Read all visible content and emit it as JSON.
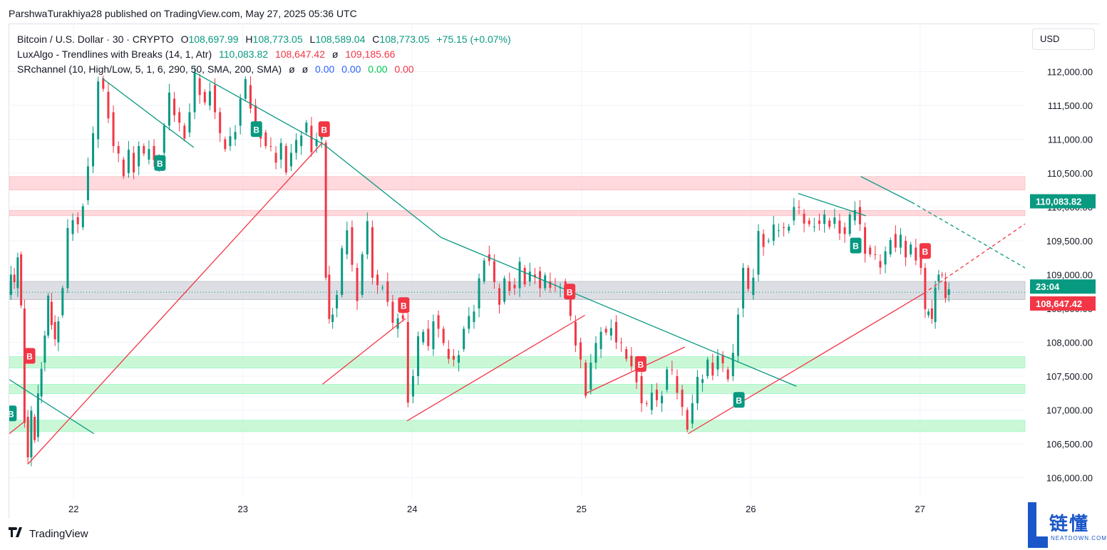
{
  "publisher_line": "ParshwaTurakhiya28 published on TradingView.com, May 27, 2025 05:36 UTC",
  "legend": {
    "symbol": "Bitcoin / U.S. Dollar · 30 · CRYPTO",
    "open_label": "O",
    "open": "108,697.99",
    "high_label": "H",
    "high": "108,773.05",
    "low_label": "L",
    "low": "108,589.04",
    "close_label": "C",
    "close": "108,773.05",
    "change": "+75.15 (+0.07%)",
    "indicator1_name": "LuxAlgo - Trendlines with Breaks (14, 1, Atr)",
    "indicator1_v1": "110,083.82",
    "indicator1_v2": "108,647.42",
    "indicator1_sym": "ø",
    "indicator1_v3": "109,185.66",
    "indicator2_name": "SRchannel (10, High/Low, 5, 1, 6, 290, 50, SMA, 200, SMA)",
    "indicator2_sym1": "ø",
    "indicator2_sym2": "ø",
    "indicator2_v1": "0.00",
    "indicator2_v2": "0.00",
    "indicator2_v3": "0.00",
    "indicator2_v4": "0.00"
  },
  "currency": "USD",
  "brand": "TradingView",
  "watermark": {
    "text": "链懂",
    "sub": "NEATDOWN.COM"
  },
  "colors": {
    "up": "#089981",
    "down": "#f23645",
    "trend_down": "#089981",
    "trend_up": "#f23645",
    "resistance_zone": "#ffcdd2",
    "support_zone": "#b9f6ca",
    "neutral_zone": "#d1d4dc"
  },
  "chart_data": {
    "type": "candlestick",
    "y_axis_labels": [
      "112,000.00",
      "111,500.00",
      "111,000.00",
      "110,500.00",
      "110,000.00",
      "109,500.00",
      "109,000.00",
      "108,500.00",
      "108,000.00",
      "107,500.00",
      "107,000.00",
      "106,500.00",
      "106,000.00"
    ],
    "y_ticks": [
      112000,
      111500,
      111000,
      110500,
      110000,
      109500,
      109000,
      108500,
      108000,
      107500,
      107000,
      106500,
      106000
    ],
    "ylim": [
      105700,
      112700
    ],
    "x_axis_labels": [
      "22",
      "23",
      "24",
      "25",
      "26",
      "27"
    ],
    "x_ticks_day": [
      22,
      23,
      24,
      25,
      26,
      27
    ],
    "xlim_day": [
      21.62,
      27.62
    ],
    "price_tags": [
      {
        "label": "110,083.82",
        "value": 110083.82,
        "color": "#089981"
      },
      {
        "label": "23:04",
        "value": 108740,
        "color": "#089981"
      },
      {
        "label": "108,647.42",
        "value": 108647.42,
        "color": "#f23645"
      }
    ],
    "last_price": 108740,
    "zones": [
      {
        "low": 110250,
        "high": 110450,
        "kind": "resistance"
      },
      {
        "low": 109870,
        "high": 109950,
        "kind": "resistance"
      },
      {
        "low": 108630,
        "high": 108900,
        "kind": "neutral"
      },
      {
        "low": 107620,
        "high": 107790,
        "kind": "support"
      },
      {
        "low": 107240,
        "high": 107380,
        "kind": "support"
      },
      {
        "low": 106680,
        "high": 106850,
        "kind": "support"
      }
    ],
    "trendlines": [
      {
        "kind": "down",
        "x": [
          22.17,
          22.71
        ],
        "y": [
          111900,
          110880
        ]
      },
      {
        "kind": "down",
        "x": [
          22.72,
          23.48
        ],
        "y": [
          111980,
          110920
        ]
      },
      {
        "kind": "down",
        "x": [
          23.48,
          24.17
        ],
        "y": [
          110920,
          109550
        ]
      },
      {
        "kind": "down",
        "x": [
          24.17,
          26.27
        ],
        "y": [
          109550,
          107350
        ]
      },
      {
        "kind": "down",
        "x": [
          26.28,
          26.68
        ],
        "y": [
          110200,
          109870
        ]
      },
      {
        "kind": "down",
        "x": [
          26.65,
          26.95
        ],
        "y": [
          110450,
          110070
        ]
      },
      {
        "kind": "down",
        "x": [
          26.95,
          27.62
        ],
        "y": [
          110070,
          109100
        ],
        "dashed": true
      },
      {
        "kind": "down",
        "x": [
          21.62,
          22.12
        ],
        "y": [
          107450,
          106650
        ]
      },
      {
        "kind": "up",
        "x": [
          21.73,
          23.47
        ],
        "y": [
          106200,
          110950
        ]
      },
      {
        "kind": "up",
        "x": [
          23.47,
          23.96
        ],
        "y": [
          107380,
          108350
        ]
      },
      {
        "kind": "up",
        "x": [
          23.97,
          25.02
        ],
        "y": [
          106840,
          108400
        ]
      },
      {
        "kind": "up",
        "x": [
          25.03,
          25.61
        ],
        "y": [
          107250,
          107930
        ]
      },
      {
        "kind": "up",
        "x": [
          25.63,
          27.02
        ],
        "y": [
          106650,
          108720
        ]
      },
      {
        "kind": "up",
        "x": [
          27.02,
          27.62
        ],
        "y": [
          108720,
          109750
        ],
        "dashed": true
      },
      {
        "kind": "up",
        "x": [
          21.62,
          21.71
        ],
        "y": [
          106650,
          106830
        ]
      }
    ],
    "break_labels": [
      {
        "label": "B",
        "x": 21.63,
        "y": 106950,
        "kind": "up"
      },
      {
        "label": "B",
        "x": 21.74,
        "y": 107800,
        "kind": "down"
      },
      {
        "label": "B",
        "x": 22.51,
        "y": 110650,
        "kind": "up"
      },
      {
        "label": "B",
        "x": 23.08,
        "y": 111150,
        "kind": "up"
      },
      {
        "label": "B",
        "x": 23.48,
        "y": 111150,
        "kind": "down"
      },
      {
        "label": "B",
        "x": 23.95,
        "y": 108550,
        "kind": "down"
      },
      {
        "label": "B",
        "x": 24.93,
        "y": 108750,
        "kind": "down"
      },
      {
        "label": "B",
        "x": 25.35,
        "y": 107680,
        "kind": "down"
      },
      {
        "label": "B",
        "x": 25.93,
        "y": 107150,
        "kind": "up"
      },
      {
        "label": "B",
        "x": 26.62,
        "y": 109430,
        "kind": "up"
      },
      {
        "label": "B",
        "x": 27.03,
        "y": 109350,
        "kind": "down"
      }
    ],
    "ohlc_path": [
      [
        21.62,
        108700
      ],
      [
        21.64,
        109000
      ],
      [
        21.66,
        108800
      ],
      [
        21.68,
        109300
      ],
      [
        21.7,
        108500
      ],
      [
        21.72,
        106900
      ],
      [
        21.74,
        106300
      ],
      [
        21.76,
        106900
      ],
      [
        21.78,
        106600
      ],
      [
        21.8,
        107200
      ],
      [
        21.82,
        107700
      ],
      [
        21.84,
        108100
      ],
      [
        21.86,
        108600
      ],
      [
        21.88,
        108300
      ],
      [
        21.9,
        108000
      ],
      [
        21.92,
        108400
      ],
      [
        21.95,
        108800
      ],
      [
        21.98,
        109600
      ],
      [
        22.01,
        109850
      ],
      [
        22.04,
        109700
      ],
      [
        22.07,
        110100
      ],
      [
        22.1,
        110600
      ],
      [
        22.13,
        111000
      ],
      [
        22.16,
        111900
      ],
      [
        22.19,
        111700
      ],
      [
        22.22,
        111400
      ],
      [
        22.25,
        110900
      ],
      [
        22.28,
        110700
      ],
      [
        22.31,
        110500
      ],
      [
        22.34,
        110800
      ],
      [
        22.37,
        110600
      ],
      [
        22.4,
        110900
      ],
      [
        22.43,
        110700
      ],
      [
        22.46,
        110900
      ],
      [
        22.49,
        110650
      ],
      [
        22.52,
        110800
      ],
      [
        22.55,
        111200
      ],
      [
        22.58,
        111600
      ],
      [
        22.61,
        111400
      ],
      [
        22.64,
        111200
      ],
      [
        22.67,
        111100
      ],
      [
        22.7,
        111400
      ],
      [
        22.73,
        111900
      ],
      [
        22.76,
        111700
      ],
      [
        22.79,
        111500
      ],
      [
        22.82,
        111800
      ],
      [
        22.85,
        111400
      ],
      [
        22.88,
        111000
      ],
      [
        22.91,
        110900
      ],
      [
        22.94,
        111000
      ],
      [
        22.97,
        111200
      ],
      [
        23.0,
        111600
      ],
      [
        23.03,
        111800
      ],
      [
        23.06,
        111500
      ],
      [
        23.09,
        111200
      ],
      [
        23.12,
        111100
      ],
      [
        23.15,
        110900
      ],
      [
        23.18,
        110800
      ],
      [
        23.21,
        110700
      ],
      [
        23.24,
        110900
      ],
      [
        23.27,
        110600
      ],
      [
        23.3,
        110800
      ],
      [
        23.33,
        110900
      ],
      [
        23.36,
        111100
      ],
      [
        23.39,
        111200
      ],
      [
        23.42,
        110900
      ],
      [
        23.45,
        111000
      ],
      [
        23.48,
        110950
      ],
      [
        23.5,
        109000
      ],
      [
        23.52,
        108300
      ],
      [
        23.54,
        108500
      ],
      [
        23.57,
        108700
      ],
      [
        23.6,
        109300
      ],
      [
        23.63,
        109700
      ],
      [
        23.66,
        109100
      ],
      [
        23.69,
        108700
      ],
      [
        23.72,
        109300
      ],
      [
        23.75,
        109700
      ],
      [
        23.78,
        109000
      ],
      [
        23.81,
        108800
      ],
      [
        23.84,
        108900
      ],
      [
        23.87,
        108600
      ],
      [
        23.9,
        108200
      ],
      [
        23.93,
        108400
      ],
      [
        23.96,
        108300
      ],
      [
        23.99,
        107200
      ],
      [
        24.02,
        107500
      ],
      [
        24.05,
        108000
      ],
      [
        24.08,
        108200
      ],
      [
        24.11,
        107900
      ],
      [
        24.14,
        108400
      ],
      [
        24.17,
        108200
      ],
      [
        24.2,
        107900
      ],
      [
        24.23,
        107800
      ],
      [
        24.26,
        107700
      ],
      [
        24.29,
        107900
      ],
      [
        24.32,
        108200
      ],
      [
        24.35,
        108300
      ],
      [
        24.38,
        108500
      ],
      [
        24.41,
        108900
      ],
      [
        24.44,
        109300
      ],
      [
        24.47,
        109200
      ],
      [
        24.5,
        108800
      ],
      [
        24.53,
        108600
      ],
      [
        24.56,
        108900
      ],
      [
        24.59,
        108850
      ],
      [
        24.62,
        108800
      ],
      [
        24.65,
        109100
      ],
      [
        24.68,
        108900
      ],
      [
        24.71,
        109000
      ],
      [
        24.74,
        109050
      ],
      [
        24.77,
        108800
      ],
      [
        24.8,
        108900
      ],
      [
        24.83,
        108850
      ],
      [
        24.86,
        108800
      ],
      [
        24.89,
        108900
      ],
      [
        24.92,
        108700
      ],
      [
        24.95,
        108300
      ],
      [
        24.98,
        108000
      ],
      [
        25.01,
        107700
      ],
      [
        25.04,
        107300
      ],
      [
        25.07,
        107700
      ],
      [
        25.1,
        107900
      ],
      [
        25.13,
        108200
      ],
      [
        25.16,
        108100
      ],
      [
        25.19,
        108300
      ],
      [
        25.22,
        108000
      ],
      [
        25.25,
        107900
      ],
      [
        25.28,
        107800
      ],
      [
        25.31,
        107600
      ],
      [
        25.34,
        107500
      ],
      [
        25.37,
        107100
      ],
      [
        25.4,
        107000
      ],
      [
        25.43,
        107300
      ],
      [
        25.46,
        107100
      ],
      [
        25.49,
        107300
      ],
      [
        25.52,
        107600
      ],
      [
        25.55,
        107500
      ],
      [
        25.58,
        107300
      ],
      [
        25.61,
        107000
      ],
      [
        25.64,
        106800
      ],
      [
        25.67,
        107100
      ],
      [
        25.7,
        107400
      ],
      [
        25.73,
        107500
      ],
      [
        25.76,
        107700
      ],
      [
        25.79,
        107600
      ],
      [
        25.82,
        107800
      ],
      [
        25.85,
        107600
      ],
      [
        25.88,
        107500
      ],
      [
        25.91,
        107800
      ],
      [
        25.94,
        108500
      ],
      [
        25.97,
        109100
      ],
      [
        26.0,
        108700
      ],
      [
        26.03,
        109000
      ],
      [
        26.06,
        109600
      ],
      [
        26.09,
        109500
      ],
      [
        26.12,
        109500
      ],
      [
        26.15,
        109650
      ],
      [
        26.18,
        109700
      ],
      [
        26.21,
        109650
      ],
      [
        26.24,
        109800
      ],
      [
        26.27,
        110000
      ],
      [
        26.3,
        109900
      ],
      [
        26.33,
        109800
      ],
      [
        26.36,
        109700
      ],
      [
        26.39,
        109800
      ],
      [
        26.42,
        109750
      ],
      [
        26.45,
        109800
      ],
      [
        26.48,
        109750
      ],
      [
        26.51,
        109800
      ],
      [
        26.54,
        109700
      ],
      [
        26.57,
        109600
      ],
      [
        26.6,
        109800
      ],
      [
        26.63,
        110000
      ],
      [
        26.66,
        109700
      ],
      [
        26.69,
        109400
      ],
      [
        26.72,
        109300
      ],
      [
        26.75,
        109200
      ],
      [
        26.78,
        109150
      ],
      [
        26.81,
        109300
      ],
      [
        26.84,
        109600
      ],
      [
        26.87,
        109400
      ],
      [
        26.9,
        109500
      ],
      [
        26.93,
        109300
      ],
      [
        26.96,
        109400
      ],
      [
        26.99,
        109300
      ],
      [
        27.02,
        109100
      ],
      [
        27.04,
        108400
      ],
      [
        27.06,
        108500
      ],
      [
        27.08,
        108300
      ],
      [
        27.1,
        108900
      ],
      [
        27.12,
        109000
      ],
      [
        27.14,
        108900
      ],
      [
        27.16,
        108700
      ],
      [
        27.18,
        108740
      ]
    ]
  }
}
